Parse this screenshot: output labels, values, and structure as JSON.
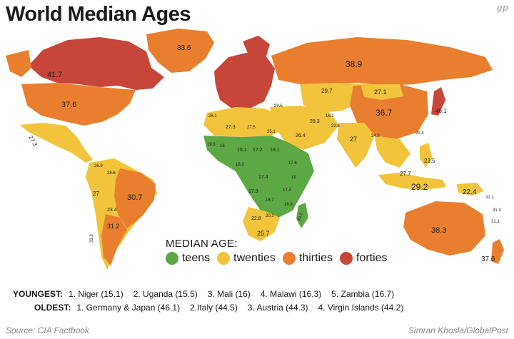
{
  "header": {
    "title": "World Median Ages",
    "logo": "gp"
  },
  "colors": {
    "teens": "#5ca844",
    "twenties": "#f1c43b",
    "thirties": "#e97f2e",
    "forties": "#c8453a"
  },
  "legend": {
    "title": "MEDIAN AGE:",
    "items": [
      {
        "label": "teens",
        "color": "#5ca844"
      },
      {
        "label": "twenties",
        "color": "#f1c43b"
      },
      {
        "label": "thirties",
        "color": "#e97f2e"
      },
      {
        "label": "forties",
        "color": "#c8453a"
      }
    ]
  },
  "map_labels": {
    "canada": "41.7",
    "greenland": "33.6",
    "russia": "38.9",
    "usa": "37.6",
    "mexico": "27.3",
    "kazakhstan": "29.7",
    "mongolia": "27.1",
    "china": "36.7",
    "japan": "46.1",
    "india": "27",
    "indonesia": "29.2",
    "philippines": "23.5",
    "malaysia": "27.7",
    "png": "22.4",
    "australia": "38.3",
    "nz": "37.6",
    "brazil": "30.7",
    "argentina": "31.2",
    "peru": "27",
    "bolivia": "23.4",
    "chile": "33.3",
    "venezuela": "26.9",
    "colombia": "28.6",
    "south_africa": "25.7",
    "namibia": "22.8",
    "madagascar": "19.1",
    "saudi": "26.4",
    "iran": "28.3",
    "egypt": "25.1",
    "libya": "27.5",
    "algeria": "27.3",
    "morocco": "28.1",
    "mauritania": "19.9",
    "niger": "15.1",
    "mali": "16",
    "chad": "17.2",
    "sudan": "19.1",
    "ethiopia": "17.6",
    "nigeria": "18.2",
    "drc": "17.4",
    "angola": "17.9",
    "zambia": "16.7",
    "tanzania": "17.4",
    "kenya": "19",
    "mozambique": "16.8",
    "botswana": "20.2",
    "pakistan": "22.6",
    "afghanistan": "18.1",
    "myanmar": "24.3",
    "thailand": "29.4",
    "turkey": "29.6",
    "pacific_1": "31.1",
    "pacific_2": "31.3",
    "pacific_3": "31.1"
  },
  "rankings": {
    "youngest_label": "YOUNGEST:",
    "youngest": [
      "1. Niger (15.1)",
      "2. Uganda (15.5)",
      "3. Mali (16)",
      "4. Malawi (16.3)",
      "5. Zambia (16.7)"
    ],
    "oldest_label": "OLDEST:",
    "oldest": [
      "1. Germany & Japan (46.1)",
      "2.Italy (44.5)",
      "3. Austria (44.3)",
      "4. Virgin Islands (44.2)"
    ]
  },
  "footer": {
    "source": "Source: CIA Factbook",
    "credit": "Simran Khosla/GlobalPost"
  }
}
